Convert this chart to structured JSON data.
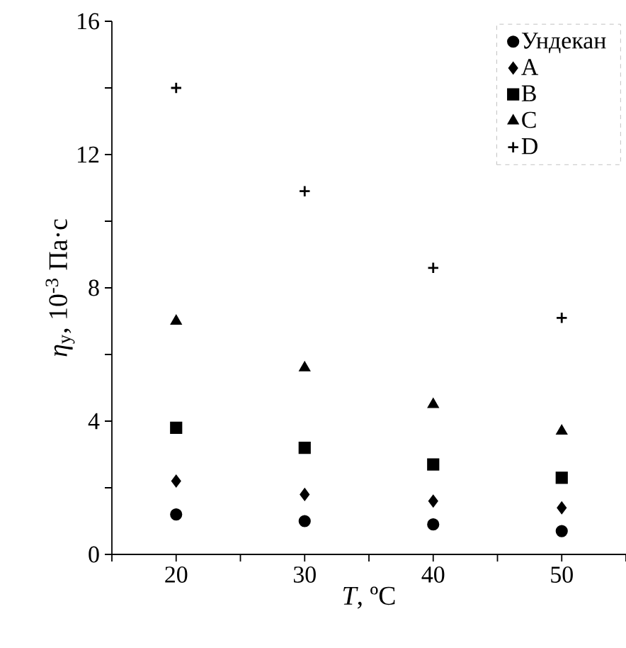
{
  "chart_data": {
    "type": "scatter",
    "xlabel": "*T*, ºC",
    "ylabel": "*η*$_{у}$, 10$^{-3}$ Па·с",
    "x": [
      20,
      30,
      40,
      50
    ],
    "series": [
      {
        "name": "Ундекан",
        "color": "#000000",
        "marker": "circle",
        "values": [
          1.2,
          1.0,
          0.9,
          0.7
        ]
      },
      {
        "name": "A",
        "color": "#000000",
        "marker": "diamond",
        "values": [
          2.2,
          1.8,
          1.6,
          1.4
        ]
      },
      {
        "name": "B",
        "color": "#000000",
        "marker": "square",
        "values": [
          3.8,
          3.2,
          2.7,
          2.3
        ]
      },
      {
        "name": "C",
        "color": "#000000",
        "marker": "triangle",
        "values": [
          7.0,
          5.6,
          4.5,
          3.7
        ]
      },
      {
        "name": "D",
        "color": "#000000",
        "marker": "cross",
        "values": [
          14.0,
          10.9,
          8.6,
          7.1
        ]
      }
    ],
    "xlim": [
      15,
      55
    ],
    "ylim": [
      0,
      16
    ],
    "xticks": [
      {
        "value": 15,
        "label": null
      },
      20,
      {
        "value": 25,
        "label": null
      },
      30,
      {
        "value": 35,
        "label": null
      },
      40,
      {
        "value": 45,
        "label": null
      },
      50,
      {
        "value": 55,
        "label": null
      }
    ],
    "yticks": [
      0,
      {
        "value": 2,
        "label": null
      },
      4,
      {
        "value": 6,
        "label": null
      },
      8,
      {
        "value": 10,
        "label": null
      },
      12,
      {
        "value": 14,
        "label": null
      },
      16
    ],
    "grid": false,
    "legend": "top right"
  }
}
